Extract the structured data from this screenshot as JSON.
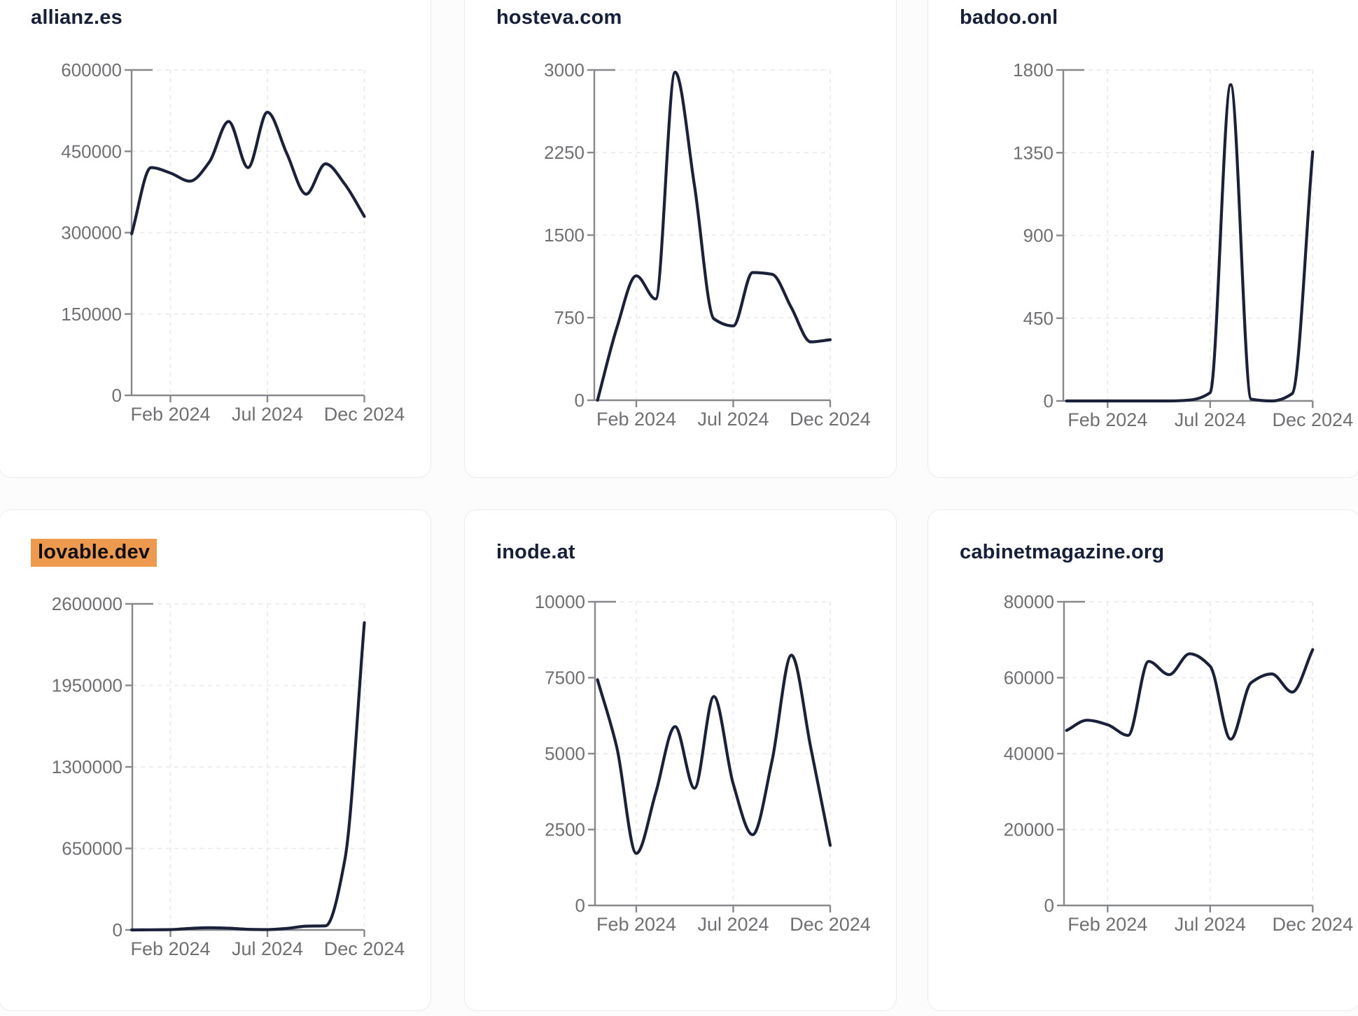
{
  "page": {
    "background": "#fcfcfd"
  },
  "colors": {
    "line": "#1b2139",
    "title": "#16203a",
    "axis": "#87888b",
    "tick_label": "#6f7074",
    "gridline": "#e7e9ee",
    "card_border": "#e8ebf1",
    "card_bg": "#ffffff",
    "highlight_bg": "#ed9a4f",
    "highlight_text": "#0e0e0e"
  },
  "chart_data": [
    {
      "type": "line",
      "title": "allianz.es",
      "highlighted": false,
      "x": [
        "Dec 2023",
        "Jan 2024",
        "Feb 2024",
        "Mar 2024",
        "Apr 2024",
        "May 2024",
        "Jun 2024",
        "Jul 2024",
        "Aug 2024",
        "Sep 2024",
        "Oct 2024",
        "Nov 2024",
        "Dec 2024"
      ],
      "values": [
        298000,
        420000,
        410000,
        395000,
        430000,
        505000,
        420000,
        522000,
        446000,
        371000,
        427000,
        389000,
        330000
      ],
      "ylim": [
        0,
        600000
      ],
      "y_ticks": [
        0,
        150000,
        300000,
        450000,
        600000
      ],
      "x_tick_labels": [
        "Feb 2024",
        "Jul 2024",
        "Dec 2024"
      ],
      "x_tick_indices": [
        2,
        7,
        12
      ],
      "grid": true,
      "legend": "none"
    },
    {
      "type": "line",
      "title": "hosteva.com",
      "highlighted": false,
      "x": [
        "Dec 2023",
        "Jan 2024",
        "Feb 2024",
        "Mar 2024",
        "Apr 2024",
        "May 2024",
        "Jun 2024",
        "Jul 2024",
        "Aug 2024",
        "Sep 2024",
        "Oct 2024",
        "Nov 2024",
        "Dec 2024"
      ],
      "values": [
        0,
        660,
        1130,
        920,
        2980,
        1950,
        740,
        675,
        1160,
        1145,
        840,
        530,
        550
      ],
      "ylim": [
        0,
        3000
      ],
      "y_ticks": [
        0,
        750,
        1500,
        2250,
        3000
      ],
      "x_tick_labels": [
        "Feb 2024",
        "Jul 2024",
        "Dec 2024"
      ],
      "x_tick_indices": [
        2,
        7,
        12
      ],
      "grid": true,
      "legend": "none"
    },
    {
      "type": "line",
      "title": "badoo.onl",
      "highlighted": false,
      "x": [
        "Dec 2023",
        "Jan 2024",
        "Feb 2024",
        "Mar 2024",
        "Apr 2024",
        "May 2024",
        "Jun 2024",
        "Jul 2024",
        "Aug 2024",
        "Sep 2024",
        "Oct 2024",
        "Nov 2024",
        "Dec 2024"
      ],
      "values": [
        0,
        0,
        0,
        0,
        0,
        0,
        5,
        45,
        1720,
        10,
        0,
        40,
        1355
      ],
      "ylim": [
        0,
        1800
      ],
      "y_ticks": [
        0,
        450,
        900,
        1350,
        1800
      ],
      "x_tick_labels": [
        "Feb 2024",
        "Jul 2024",
        "Dec 2024"
      ],
      "x_tick_indices": [
        2,
        7,
        12
      ],
      "grid": true,
      "legend": "none"
    },
    {
      "type": "line",
      "title": "lovable.dev",
      "highlighted": true,
      "x": [
        "Dec 2023",
        "Jan 2024",
        "Feb 2024",
        "Mar 2024",
        "Apr 2024",
        "May 2024",
        "Jun 2024",
        "Jul 2024",
        "Aug 2024",
        "Sep 2024",
        "Oct 2024",
        "Nov 2024",
        "Dec 2024"
      ],
      "values": [
        0,
        1000,
        3000,
        12000,
        18000,
        14000,
        5000,
        3000,
        12000,
        30000,
        33000,
        565000,
        2450000
      ],
      "ylim": [
        0,
        2600000
      ],
      "y_ticks": [
        0,
        650000,
        1300000,
        1950000,
        2600000
      ],
      "x_tick_labels": [
        "Feb 2024",
        "Jul 2024",
        "Dec 2024"
      ],
      "x_tick_indices": [
        2,
        7,
        12
      ],
      "grid": true,
      "legend": "none"
    },
    {
      "type": "line",
      "title": "inode.at",
      "highlighted": false,
      "x": [
        "Dec 2023",
        "Jan 2024",
        "Feb 2024",
        "Mar 2024",
        "Apr 2024",
        "May 2024",
        "Jun 2024",
        "Jul 2024",
        "Aug 2024",
        "Sep 2024",
        "Oct 2024",
        "Nov 2024",
        "Dec 2024"
      ],
      "values": [
        7430,
        5190,
        1715,
        3700,
        5890,
        3860,
        6880,
        4000,
        2330,
        4760,
        8240,
        5190,
        1980
      ],
      "ylim": [
        0,
        10000
      ],
      "y_ticks": [
        0,
        2500,
        5000,
        7500,
        10000
      ],
      "x_tick_labels": [
        "Feb 2024",
        "Jul 2024",
        "Dec 2024"
      ],
      "x_tick_indices": [
        2,
        7,
        12
      ],
      "grid": true,
      "legend": "none"
    },
    {
      "type": "line",
      "title": "cabinetmagazine.org",
      "highlighted": false,
      "x": [
        "Dec 2023",
        "Jan 2024",
        "Feb 2024",
        "Mar 2024",
        "Apr 2024",
        "May 2024",
        "Jun 2024",
        "Jul 2024",
        "Aug 2024",
        "Sep 2024",
        "Oct 2024",
        "Nov 2024",
        "Dec 2024"
      ],
      "values": [
        46100,
        48800,
        47600,
        44800,
        64300,
        60800,
        66300,
        63000,
        43800,
        58700,
        61000,
        56200,
        67400
      ],
      "ylim": [
        0,
        80000
      ],
      "y_ticks": [
        0,
        20000,
        40000,
        60000,
        80000
      ],
      "x_tick_labels": [
        "Feb 2024",
        "Jul 2024",
        "Dec 2024"
      ],
      "x_tick_indices": [
        2,
        7,
        12
      ],
      "grid": true,
      "legend": "none"
    }
  ]
}
